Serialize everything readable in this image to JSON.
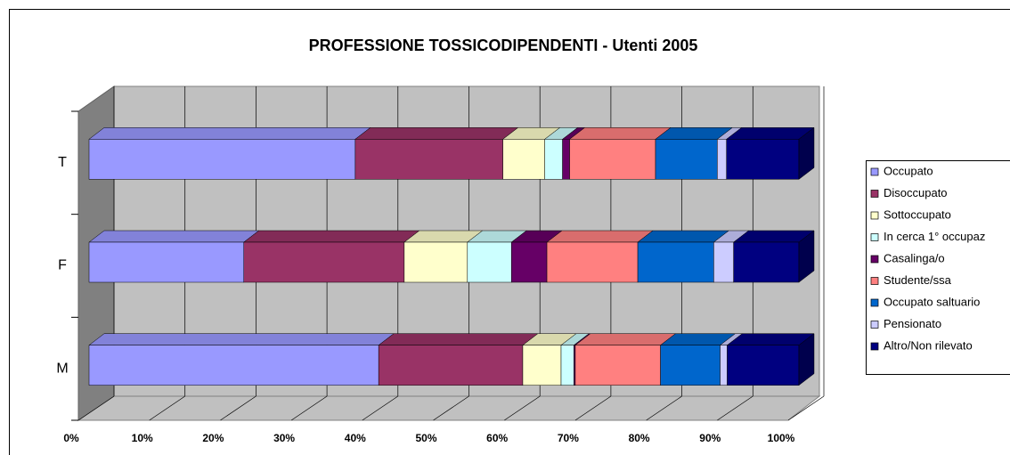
{
  "chart_data": {
    "type": "bar3d_stacked_horizontal",
    "title": "PROFESSIONE TOSSICODIPENDENTI - Utenti 2005",
    "categories": [
      "M",
      "F",
      "T"
    ],
    "series": [
      {
        "name": "Occupato",
        "color": "#9999ff",
        "values": [
          40.8,
          21.8,
          37.5
        ]
      },
      {
        "name": "Disoccupato",
        "color": "#993366",
        "values": [
          20.3,
          22.6,
          20.8
        ]
      },
      {
        "name": "Sottoccupato",
        "color": "#ffffcc",
        "values": [
          5.4,
          8.9,
          5.9
        ]
      },
      {
        "name": "In cerca 1° occupaz",
        "color": "#ccffff",
        "values": [
          1.8,
          6.2,
          2.5
        ]
      },
      {
        "name": "Casalinga/o",
        "color": "#660066",
        "values": [
          0.2,
          5.0,
          1.0
        ]
      },
      {
        "name": "Studente/ssa",
        "color": "#ff8080",
        "values": [
          12.0,
          12.8,
          12.1
        ]
      },
      {
        "name": "Occupato saltuario",
        "color": "#0066cc",
        "values": [
          8.4,
          10.7,
          8.7
        ]
      },
      {
        "name": "Pensionato",
        "color": "#ccccff",
        "values": [
          1.0,
          2.8,
          1.3
        ]
      },
      {
        "name": "Altro/Non rilevato",
        "color": "#000080",
        "values": [
          10.1,
          9.2,
          10.2
        ]
      }
    ],
    "xlim": [
      0,
      100
    ],
    "xticks": [
      {
        "value": 0,
        "label": "0%"
      },
      {
        "value": 10,
        "label": "10%"
      },
      {
        "value": 20,
        "label": "20%"
      },
      {
        "value": 30,
        "label": "30%"
      },
      {
        "value": 40,
        "label": "40%"
      },
      {
        "value": 50,
        "label": "50%"
      },
      {
        "value": 60,
        "label": "60%"
      },
      {
        "value": 70,
        "label": "70%"
      },
      {
        "value": 80,
        "label": "80%"
      },
      {
        "value": 90,
        "label": "90%"
      },
      {
        "value": 100,
        "label": "100%"
      }
    ],
    "grid": true,
    "legend": "right"
  }
}
